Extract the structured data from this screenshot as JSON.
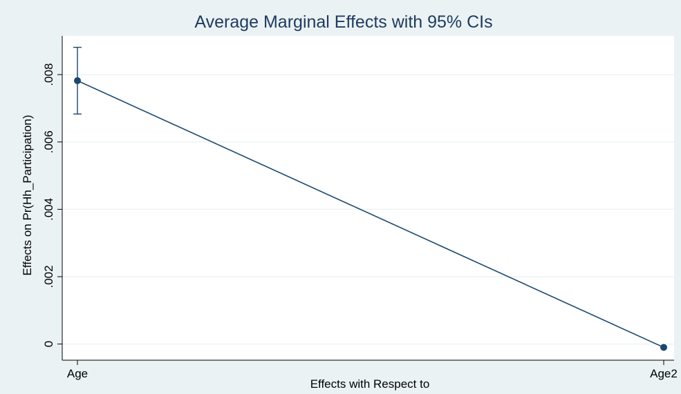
{
  "chart_data": {
    "type": "line",
    "title": "Average Marginal Effects with 95% CIs",
    "xlabel": "Effects with Respect to",
    "ylabel": "Effects on Pr(Hh_Participation)",
    "categories": [
      "Age",
      "Age2"
    ],
    "values": [
      0.00782,
      -0.0001
    ],
    "ci_lower": [
      0.00683,
      -0.0001
    ],
    "ci_upper": [
      0.00881,
      -0.0001
    ],
    "yticks": [
      0,
      0.002,
      0.004,
      0.006,
      0.008
    ],
    "ytick_labels": [
      "0",
      ".002",
      ".004",
      ".006",
      ".008"
    ],
    "ylim": [
      -0.00048,
      0.00915
    ],
    "grid": true,
    "colors": {
      "figure_background": "#eaf2f3",
      "plot_background": "#ffffff",
      "series": "#1a476f",
      "grid": "#eaf2f3",
      "title": "#1e3a5f"
    }
  }
}
